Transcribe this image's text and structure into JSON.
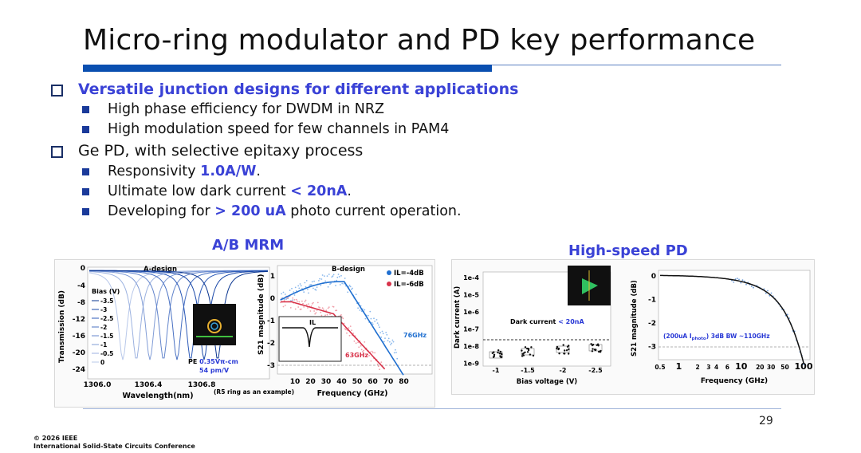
{
  "title": "Micro-ring modulator and PD key performance",
  "bullets": [
    {
      "pre": "",
      "hl": "Versatile junction designs for different applications",
      "post": "",
      "level": 1,
      "bold": true
    },
    {
      "pre": "High phase efficiency for DWDM in NRZ",
      "hl": "",
      "post": "",
      "level": 2
    },
    {
      "pre": "High modulation speed for few channels in PAM4",
      "hl": "",
      "post": "",
      "level": 2
    },
    {
      "pre": "Ge PD, with selective epitaxy process",
      "hl": "",
      "post": "",
      "level": 1
    },
    {
      "pre": "Responsivity ",
      "hl": "1.0A/W",
      "post": ".",
      "level": 2
    },
    {
      "pre": "Ultimate low dark current ",
      "hl": "< 20nA",
      "post": ".",
      "level": 2
    },
    {
      "pre": "Developing for ",
      "hl": "> 200 uA",
      "post": " photo current operation.",
      "level": 2
    }
  ],
  "sections": {
    "mrm": "A/B MRM",
    "pd": "High-speed PD"
  },
  "figA": {
    "title": "A-design",
    "ylabel": "Transmission (dB)",
    "xlabel": "Wavelength(nm)",
    "yticks": [
      "0",
      "-4",
      "-8",
      "-12",
      "-16",
      "-20",
      "-24"
    ],
    "xticks": [
      "1306.0",
      "1306.4",
      "1306.8"
    ],
    "legend_title": "Bias (V)",
    "legend": [
      "-3.5",
      "-3",
      "-2.5",
      "-2",
      "-1.5",
      "-1",
      "-0.5",
      "0"
    ],
    "pe_label": "PE ",
    "pe_value": "0.35Vπ-cm",
    "pe_pm": "54 pm/V"
  },
  "figB": {
    "title": "B-design",
    "ylabel": "S21 magnitude (dB)",
    "xlabel": "Frequency (GHz)",
    "yticks": [
      "1",
      "0",
      "-1",
      "-2",
      "-3"
    ],
    "xticks": [
      "10",
      "20",
      "30",
      "40",
      "50",
      "60",
      "70",
      "80"
    ],
    "legend": [
      "IL=-4dB",
      "IL=-6dB"
    ],
    "bw_blue": "76GHz",
    "bw_red": "63GHz",
    "inset_label": "IL",
    "note": "(R5 ring as an example)"
  },
  "figC": {
    "ylabel": "Dark current (A)",
    "xlabel": "Bias voltage (V)",
    "yticks": [
      "1e-4",
      "1e-5",
      "1e-6",
      "1e-7",
      "1e-8",
      "1e-9"
    ],
    "xticks": [
      "-1",
      "-1.5",
      "-2",
      "-2.5"
    ],
    "annot_pre": "Dark current ",
    "annot_hl": "< 20nA"
  },
  "figD": {
    "ylabel": "S21 magnitude (dB)",
    "xlabel": "Frequency (GHz)",
    "yticks": [
      "0",
      "-1",
      "-2",
      "-3"
    ],
    "xticks": [
      "0.5",
      "1",
      "2",
      "3",
      "4",
      "6",
      "10",
      "20",
      "30",
      "50",
      "100"
    ],
    "annot_pre": "(200uA I",
    "annot_sub": "photo",
    "annot_post": ") 3dB BW ~110GHz"
  },
  "page_number": "29",
  "copyright": [
    "© 2026 IEEE",
    "International Solid-State Circuits Conference"
  ],
  "colors": {
    "accent": "#3a42d6",
    "rule": "#0a4fb0",
    "blue_series": "#1f6fd0",
    "red_series": "#d8334a"
  }
}
